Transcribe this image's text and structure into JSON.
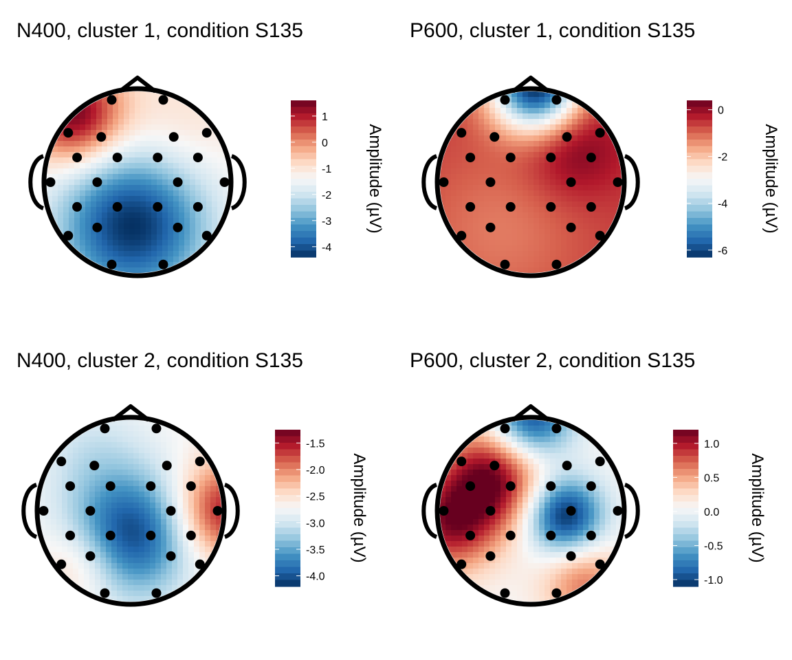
{
  "chart_data": [
    {
      "type": "heatmap",
      "title": "N400, cluster 1, condition S135",
      "colorbar_label": "Amplitude (µV)",
      "colorbar_ticks": [
        "1",
        "0",
        "-1",
        "-2",
        "-3",
        "-4"
      ],
      "colorbar_tick_values": [
        1,
        0,
        -1,
        -2,
        -3,
        -4
      ],
      "range": [
        -4.4,
        1.6
      ],
      "extremes": [
        {
          "location": "front-left",
          "value": 1.5
        },
        {
          "location": "center-back",
          "value": -4.2
        }
      ]
    },
    {
      "type": "heatmap",
      "title": "P600, cluster 1, condition S135",
      "colorbar_label": "Amplitude (µV)",
      "colorbar_ticks": [
        "0",
        "-2",
        "-4",
        "-6"
      ],
      "colorbar_tick_values": [
        0,
        -2,
        -4,
        -6
      ],
      "range": [
        -6.3,
        0.4
      ],
      "extremes": [
        {
          "location": "front-center",
          "value": -6.0
        },
        {
          "location": "center-right",
          "value": 0.2
        }
      ]
    },
    {
      "type": "heatmap",
      "title": "N400, cluster 2, condition S135",
      "colorbar_label": "Amplitude (µV)",
      "colorbar_ticks": [
        "-1.5",
        "-2.0",
        "-2.5",
        "-3.0",
        "-3.5",
        "-4.0"
      ],
      "colorbar_tick_values": [
        -1.5,
        -2.0,
        -2.5,
        -3.0,
        -3.5,
        -4.0
      ],
      "range": [
        -4.2,
        -1.25
      ],
      "extremes": [
        {
          "location": "right",
          "value": -1.6
        },
        {
          "location": "center-back",
          "value": -4.1
        }
      ]
    },
    {
      "type": "heatmap",
      "title": "P600, cluster 2, condition S135",
      "colorbar_label": "Amplitude (µV)",
      "colorbar_ticks": [
        "1.0",
        "0.5",
        "0.0",
        "-0.5",
        "-1.0"
      ],
      "colorbar_tick_values": [
        1.0,
        0.5,
        0.0,
        -0.5,
        -1.0
      ],
      "range": [
        -1.1,
        1.2
      ],
      "extremes": [
        {
          "location": "left-center",
          "value": 1.1
        },
        {
          "location": "right-center",
          "value": -0.9
        },
        {
          "location": "front",
          "value": -0.9
        }
      ]
    }
  ],
  "colors": {
    "scale": [
      "#053061",
      "#2166ac",
      "#4393c3",
      "#92c5de",
      "#d1e5f0",
      "#f7f7f7",
      "#fddbc7",
      "#f4a582",
      "#d6604d",
      "#b2182b",
      "#67001f"
    ],
    "outline": "#000000"
  }
}
